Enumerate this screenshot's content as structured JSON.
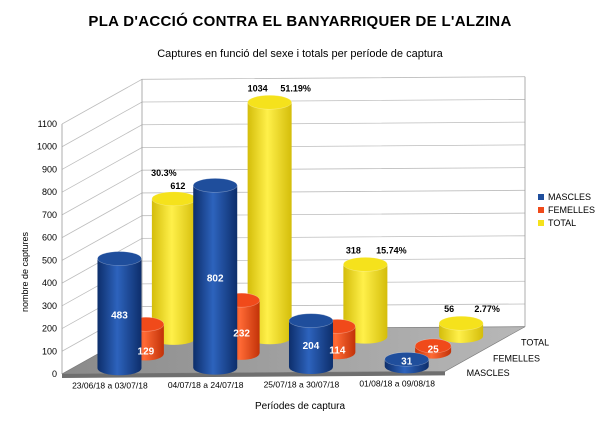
{
  "title": "PLA D'ACCIÓ CONTRA EL BANYARRIQUER DE L'ALZINA",
  "subtitle": "Captures en funció del sexe i totals   per període de captura",
  "chart_data": {
    "type": "bar",
    "subtype": "3d-clustered-column",
    "categories": [
      "23/06/18 a 03/07/18",
      "04/07/18 a 24/07/18",
      "25/07/18 a 30/07/18",
      "01/08/18 a 09/08/18"
    ],
    "series": [
      {
        "name": "MASCLES",
        "color": "#1f4e9c",
        "values": [
          483,
          802,
          204,
          31
        ],
        "labels": [
          "483",
          "802",
          "204",
          "31"
        ]
      },
      {
        "name": "FEMELLES",
        "color": "#f04a1a",
        "values": [
          129,
          232,
          114,
          25
        ],
        "labels": [
          "129",
          "232",
          "114",
          "25"
        ]
      },
      {
        "name": "TOTAL",
        "color": "#f5e21c",
        "values": [
          612,
          1034,
          318,
          56
        ],
        "labels": [
          "612",
          "1034",
          "318",
          "56"
        ],
        "percent_labels": [
          "30.3%",
          "51.19%",
          "15.74%",
          "2.77%"
        ]
      }
    ],
    "depth_labels": [
      "MASCLES",
      "FEMELLES",
      "TOTAL"
    ],
    "xlabel": "Períodes de captura",
    "ylabel": "nombre de captures",
    "ylim": [
      0,
      1100
    ],
    "yticks": [
      0,
      100,
      200,
      300,
      400,
      500,
      600,
      700,
      800,
      900,
      1000,
      1100
    ],
    "grid": true,
    "legend_position": "right"
  }
}
